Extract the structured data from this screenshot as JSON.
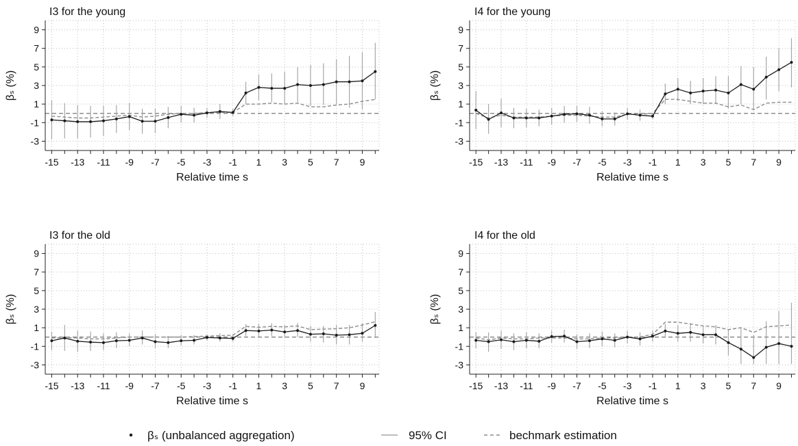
{
  "chart_data": [
    {
      "type": "line",
      "title": "I3 for the young",
      "xlabel": "Relative time s",
      "ylabel": "βₛ (%)",
      "xticks": [
        -15,
        -13,
        -11,
        -9,
        -7,
        -5,
        -3,
        -1,
        1,
        3,
        5,
        7,
        9
      ],
      "yticks": [
        -3,
        -1,
        1,
        3,
        5,
        7,
        9
      ],
      "xlim": [
        -15.5,
        10.3
      ],
      "ylim": [
        -4,
        10
      ],
      "grid": "dotted",
      "x": [
        -15,
        -14,
        -13,
        -12,
        -11,
        -10,
        -9,
        -8,
        -7,
        -6,
        -5,
        -4,
        -3,
        -2,
        -1,
        0,
        1,
        2,
        3,
        4,
        5,
        6,
        7,
        8,
        9,
        10
      ],
      "series": [
        {
          "name": "βₛ (unbalanced aggregation)",
          "role": "estimate",
          "values": [
            -0.7,
            -0.8,
            -0.9,
            -0.9,
            -0.8,
            -0.6,
            -0.35,
            -0.85,
            -0.85,
            -0.45,
            -0.1,
            -0.2,
            0.05,
            0.2,
            0.1,
            2.2,
            2.8,
            2.7,
            2.7,
            3.1,
            3.0,
            3.1,
            3.4,
            3.4,
            3.5,
            4.5
          ]
        },
        {
          "name": "95% CI",
          "role": "ci",
          "lower": [
            -2.8,
            -2.7,
            -2.7,
            -2.6,
            -2.4,
            -2.1,
            -1.8,
            -2.2,
            -2.1,
            -1.6,
            -1.0,
            -1.0,
            -0.5,
            -0.6,
            -0.3,
            1.0,
            1.4,
            1.2,
            1.0,
            1.2,
            0.8,
            0.9,
            1.0,
            0.6,
            0.4,
            1.5
          ],
          "upper": [
            1.4,
            1.1,
            0.9,
            0.8,
            0.8,
            0.9,
            1.1,
            0.5,
            0.5,
            0.7,
            0.8,
            0.6,
            0.6,
            1.0,
            0.5,
            3.4,
            4.2,
            4.3,
            4.5,
            5.0,
            5.2,
            5.4,
            5.8,
            6.2,
            6.6,
            7.6
          ]
        },
        {
          "name": "bechmark estimation",
          "role": "benchmark",
          "values": [
            -0.3,
            -0.4,
            -0.5,
            -0.5,
            -0.4,
            -0.3,
            -0.2,
            -0.4,
            -0.3,
            -0.1,
            0.0,
            0.0,
            0.1,
            0.1,
            0.1,
            1.0,
            1.0,
            1.1,
            1.0,
            1.1,
            0.7,
            0.7,
            0.9,
            1.0,
            1.3,
            1.5
          ]
        }
      ]
    },
    {
      "type": "line",
      "title": "I4 for the young",
      "xlabel": "Relative time s",
      "ylabel": "βₛ (%)",
      "xticks": [
        -15,
        -13,
        -11,
        -9,
        -7,
        -5,
        -3,
        -1,
        1,
        3,
        5,
        7,
        9
      ],
      "yticks": [
        -3,
        -1,
        1,
        3,
        5,
        7,
        9
      ],
      "xlim": [
        -15.5,
        10.3
      ],
      "ylim": [
        -4,
        10
      ],
      "grid": "dotted",
      "x": [
        -15,
        -14,
        -13,
        -12,
        -11,
        -10,
        -9,
        -8,
        -7,
        -6,
        -5,
        -4,
        -3,
        -2,
        -1,
        0,
        1,
        2,
        3,
        4,
        5,
        6,
        7,
        8,
        9,
        10
      ],
      "series": [
        {
          "name": "βₛ (unbalanced aggregation)",
          "role": "estimate",
          "values": [
            0.35,
            -0.65,
            0.05,
            -0.5,
            -0.5,
            -0.5,
            -0.3,
            -0.1,
            -0.05,
            -0.2,
            -0.6,
            -0.6,
            -0.05,
            -0.2,
            -0.3,
            2.1,
            2.6,
            2.2,
            2.4,
            2.5,
            2.2,
            3.1,
            2.6,
            3.9,
            4.7,
            5.5
          ]
        },
        {
          "name": "95% CI",
          "role": "ci",
          "lower": [
            -1.7,
            -2.2,
            -1.5,
            -1.6,
            -1.5,
            -1.4,
            -1.2,
            -1.0,
            -0.9,
            -1.1,
            -1.4,
            -1.3,
            -0.7,
            -0.8,
            -0.6,
            1.0,
            1.3,
            1.0,
            1.0,
            1.0,
            0.5,
            1.0,
            0.4,
            1.5,
            2.4,
            2.8
          ],
          "upper": [
            2.4,
            1.0,
            1.6,
            0.6,
            0.5,
            0.4,
            0.6,
            0.8,
            0.8,
            0.7,
            0.2,
            0.1,
            0.6,
            0.4,
            0.0,
            3.2,
            3.8,
            3.5,
            3.8,
            4.0,
            4.0,
            5.1,
            5.0,
            6.1,
            7.0,
            8.1
          ]
        },
        {
          "name": "bechmark estimation",
          "role": "benchmark",
          "values": [
            0.0,
            -0.5,
            -0.2,
            -0.4,
            -0.4,
            -0.4,
            -0.3,
            -0.2,
            -0.2,
            -0.3,
            -0.4,
            -0.4,
            -0.1,
            -0.1,
            0.0,
            1.5,
            1.5,
            1.3,
            1.1,
            1.1,
            0.7,
            0.9,
            0.4,
            1.1,
            1.2,
            1.2
          ]
        }
      ]
    },
    {
      "type": "line",
      "title": "I3 for the old",
      "xlabel": "Relative time s",
      "ylabel": "βₛ (%)",
      "xticks": [
        -15,
        -13,
        -11,
        -9,
        -7,
        -5,
        -3,
        -1,
        1,
        3,
        5,
        7,
        9
      ],
      "yticks": [
        -3,
        -1,
        1,
        3,
        5,
        7,
        9
      ],
      "xlim": [
        -15.5,
        10.3
      ],
      "ylim": [
        -4,
        10
      ],
      "grid": "dotted",
      "x": [
        -15,
        -14,
        -13,
        -12,
        -11,
        -10,
        -9,
        -8,
        -7,
        -6,
        -5,
        -4,
        -3,
        -2,
        -1,
        0,
        1,
        2,
        3,
        4,
        5,
        6,
        7,
        8,
        9,
        10
      ],
      "series": [
        {
          "name": "βₛ (unbalanced aggregation)",
          "role": "estimate",
          "values": [
            -0.4,
            -0.1,
            -0.45,
            -0.55,
            -0.6,
            -0.4,
            -0.35,
            -0.1,
            -0.5,
            -0.6,
            -0.4,
            -0.35,
            -0.05,
            -0.1,
            -0.15,
            0.7,
            0.65,
            0.75,
            0.55,
            0.7,
            0.3,
            0.35,
            0.2,
            0.25,
            0.4,
            1.25
          ]
        },
        {
          "name": "95% CI",
          "role": "ci",
          "lower": [
            -1.4,
            -1.5,
            -1.6,
            -1.5,
            -1.4,
            -1.2,
            -1.0,
            -0.8,
            -1.2,
            -1.2,
            -0.9,
            -0.8,
            -0.4,
            -0.5,
            -0.5,
            0.1,
            0.0,
            0.1,
            -0.1,
            0.0,
            -0.5,
            -0.6,
            -0.8,
            -0.8,
            -0.5,
            -0.1
          ],
          "upper": [
            0.6,
            1.3,
            0.7,
            0.6,
            0.4,
            0.5,
            0.4,
            0.7,
            0.3,
            0.1,
            0.2,
            0.2,
            0.3,
            0.4,
            0.3,
            1.4,
            1.4,
            1.5,
            1.3,
            1.5,
            1.2,
            1.2,
            1.3,
            1.3,
            1.5,
            2.7
          ]
        },
        {
          "name": "bechmark estimation",
          "role": "benchmark",
          "values": [
            -0.1,
            -0.05,
            -0.1,
            -0.2,
            -0.2,
            -0.1,
            0.0,
            0.0,
            0.0,
            0.0,
            0.0,
            0.05,
            0.1,
            0.15,
            0.2,
            1.15,
            1.05,
            1.15,
            1.1,
            1.2,
            0.8,
            0.85,
            0.9,
            1.0,
            1.3,
            1.65
          ]
        }
      ]
    },
    {
      "type": "line",
      "title": "I4 for the old",
      "xlabel": "Relative time s",
      "ylabel": "βₛ (%)",
      "xticks": [
        -15,
        -13,
        -11,
        -9,
        -7,
        -5,
        -3,
        -1,
        1,
        3,
        5,
        7,
        9
      ],
      "yticks": [
        -3,
        -1,
        1,
        3,
        5,
        7,
        9
      ],
      "xlim": [
        -15.5,
        10.3
      ],
      "ylim": [
        -4,
        10
      ],
      "grid": "dotted",
      "x": [
        -15,
        -14,
        -13,
        -12,
        -11,
        -10,
        -9,
        -8,
        -7,
        -6,
        -5,
        -4,
        -3,
        -2,
        -1,
        0,
        1,
        2,
        3,
        4,
        5,
        6,
        7,
        8,
        9,
        10
      ],
      "series": [
        {
          "name": "βₛ (unbalanced aggregation)",
          "role": "estimate",
          "values": [
            -0.35,
            -0.5,
            -0.3,
            -0.5,
            -0.35,
            -0.45,
            0.05,
            0.1,
            -0.5,
            -0.4,
            -0.2,
            -0.35,
            0.0,
            -0.2,
            0.1,
            0.65,
            0.4,
            0.5,
            0.25,
            0.25,
            -0.6,
            -1.3,
            -2.2,
            -1.1,
            -0.7,
            -1.0
          ]
        },
        {
          "name": "95% CI",
          "role": "ci",
          "lower": [
            -1.2,
            -1.6,
            -1.3,
            -1.4,
            -1.2,
            -1.2,
            -0.6,
            -0.6,
            -1.3,
            -1.2,
            -1.0,
            -1.1,
            -0.7,
            -0.9,
            -0.5,
            -0.1,
            -0.5,
            -0.5,
            -0.7,
            -0.8,
            -2.0,
            -2.9,
            -2.9,
            -2.9,
            -2.9,
            -2.9
          ],
          "upper": [
            0.5,
            0.5,
            0.7,
            0.4,
            0.5,
            0.4,
            0.7,
            0.8,
            0.3,
            0.4,
            0.6,
            0.4,
            0.7,
            0.5,
            0.7,
            1.4,
            1.3,
            1.5,
            1.2,
            1.3,
            0.8,
            0.9,
            0.2,
            1.7,
            2.8,
            3.7
          ]
        },
        {
          "name": "bechmark estimation",
          "role": "benchmark",
          "values": [
            -0.1,
            -0.3,
            -0.1,
            -0.2,
            -0.2,
            -0.1,
            -0.1,
            -0.1,
            -0.2,
            -0.2,
            -0.1,
            -0.1,
            0.0,
            0.0,
            0.3,
            1.6,
            1.6,
            1.4,
            1.2,
            1.1,
            0.8,
            1.0,
            0.5,
            1.1,
            1.2,
            1.3
          ]
        }
      ]
    }
  ],
  "legend": {
    "items": [
      {
        "label": "βₛ (unbalanced aggregation)",
        "role": "estimate"
      },
      {
        "label": "95% CI",
        "role": "ci"
      },
      {
        "label": "bechmark estimation",
        "role": "benchmark"
      }
    ]
  },
  "colors": {
    "estimate": "#1a1a1a",
    "ci": "#a6a6a6",
    "benchmark": "#8c8c8c",
    "zero_line": "#8c8c8c",
    "grid": "#bdbdbd",
    "axis": "#222222"
  }
}
